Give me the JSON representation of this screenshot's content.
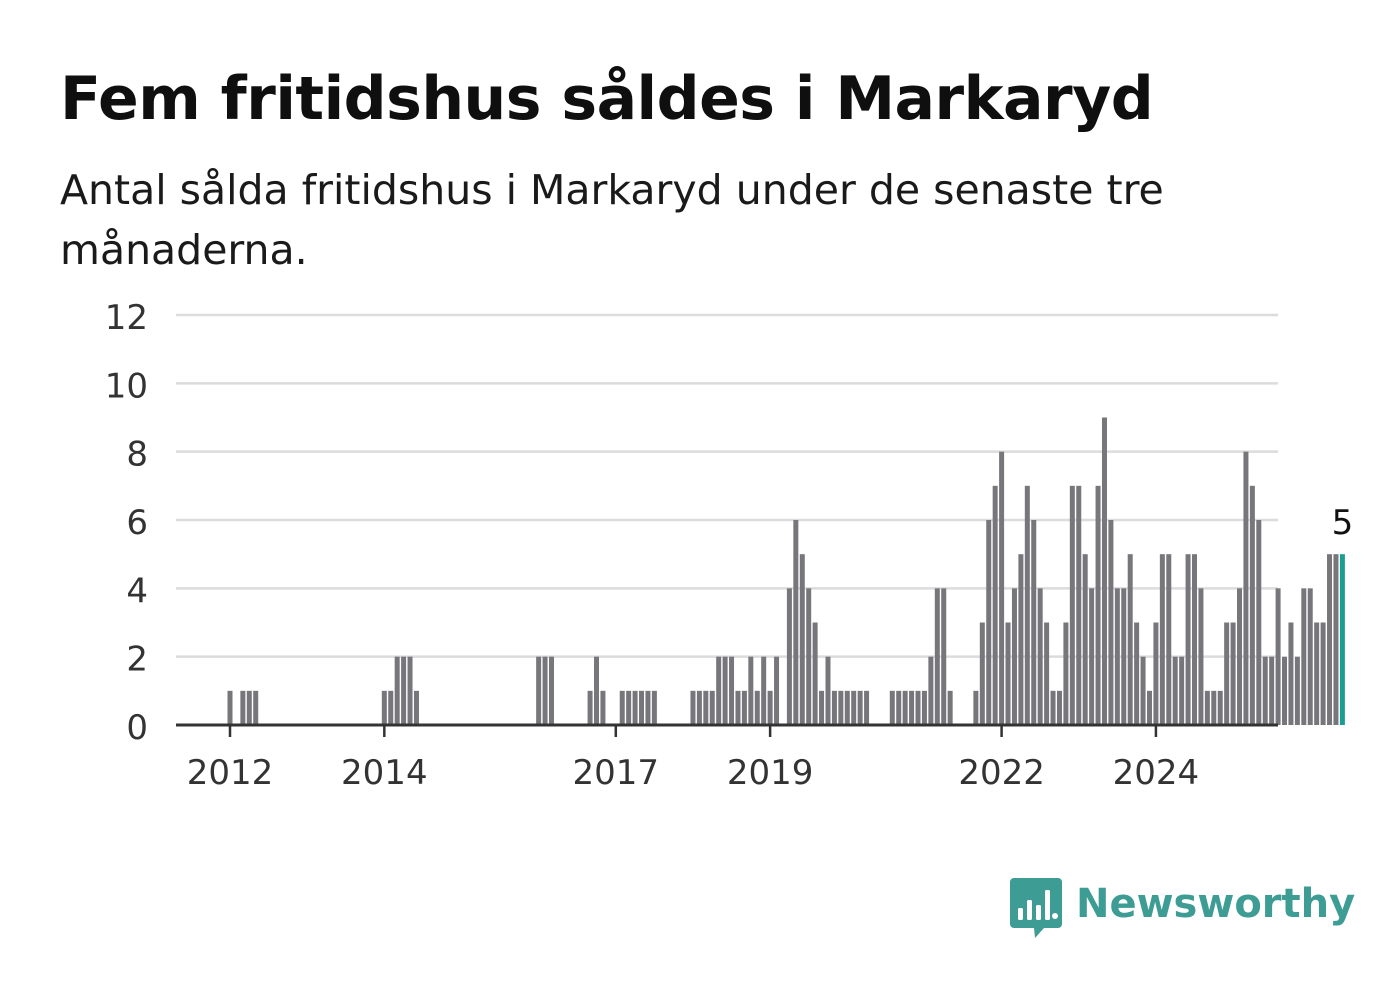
{
  "title": "Fem fritidshus såldes i Markaryd",
  "subtitle": "Antal sålda fritidshus i Markaryd under de senaste tre månaderna.",
  "brand": {
    "name": "Newsworthy",
    "icon": "newsworthy-logo-icon",
    "color": "#3d9c94"
  },
  "colors": {
    "bar": "#77767b",
    "highlight": "#1a9e93",
    "grid": "#dcdcdc",
    "axis": "#333333"
  },
  "chart_data": {
    "type": "bar",
    "xlabel": "",
    "ylabel": "",
    "ylim": [
      0,
      12
    ],
    "yticks": [
      "0",
      "2",
      "4",
      "6",
      "8",
      "10",
      "12"
    ],
    "x_tick_labels": [
      "2012",
      "2014",
      "2017",
      "2019",
      "2022",
      "2024"
    ],
    "grid": true,
    "annotation": "5",
    "series": [
      {
        "values": [
          1,
          0,
          1,
          1,
          1,
          0,
          0,
          0,
          0,
          0,
          0,
          0,
          0,
          0,
          0,
          0,
          0,
          0,
          0,
          0,
          0,
          0,
          0,
          0,
          1,
          1,
          2,
          2,
          2,
          1,
          0,
          0,
          0,
          0,
          0,
          0,
          0,
          0,
          0,
          0,
          0,
          0,
          0,
          0,
          0,
          0,
          0,
          0,
          2,
          2,
          2,
          0,
          0,
          0,
          0,
          0,
          1,
          2,
          1,
          0,
          0,
          1,
          1,
          1,
          1,
          1,
          1,
          0,
          0,
          0,
          0,
          0,
          1,
          1,
          1,
          1,
          2,
          2,
          2,
          1,
          1,
          2,
          1,
          2,
          1,
          2,
          0,
          4,
          6,
          5,
          4,
          3,
          1,
          2,
          1,
          1,
          1,
          1,
          1,
          1,
          0,
          0,
          0,
          1,
          1,
          1,
          1,
          1,
          1,
          2,
          4,
          4,
          1,
          0,
          0,
          0,
          1,
          3,
          6,
          7,
          8,
          3,
          4,
          5,
          7,
          6,
          4,
          3,
          1,
          1,
          3,
          7,
          7,
          5,
          4,
          7,
          9,
          6,
          4,
          4,
          5,
          3,
          2,
          1,
          3,
          5,
          5,
          2,
          2,
          5,
          5,
          4,
          1,
          1,
          1,
          3,
          3,
          4,
          8,
          7,
          6,
          2,
          2,
          4,
          2,
          3,
          2,
          4,
          4,
          3,
          3,
          5,
          5,
          5
        ]
      }
    ]
  }
}
